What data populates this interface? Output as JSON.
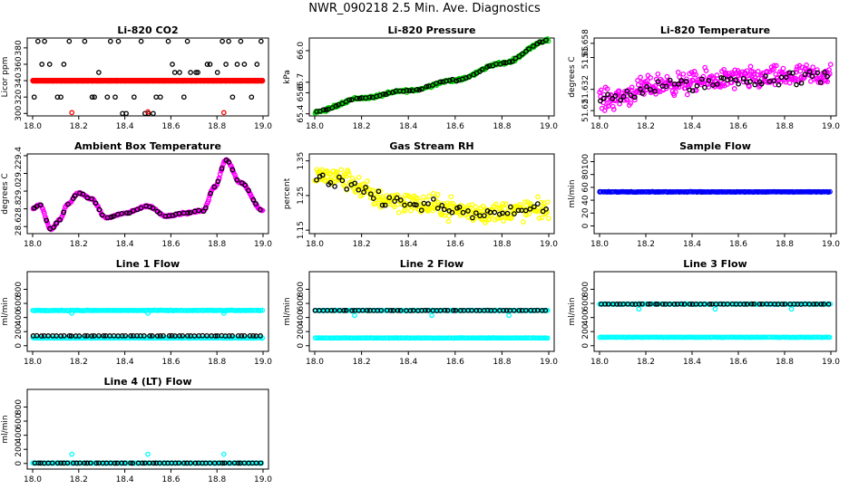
{
  "page": {
    "title": "NWR_090218  2.5 Min. Ave. Diagnostics"
  },
  "colors": {
    "black": "#000000",
    "red": "#ff0000",
    "green": "#00cc00",
    "magenta": "#ff00ff",
    "yellow": "#ffff00",
    "blue": "#0000ff",
    "cyan": "#00ffff"
  },
  "chart_data": [
    {
      "id": "co2",
      "type": "scatter",
      "title": "Li-820 CO2",
      "xlabel": "",
      "ylabel": "Licor ppm",
      "xlim": [
        18.0,
        19.0
      ],
      "ylim": [
        297,
        392
      ],
      "xticks": [
        "18.0",
        "18.2",
        "18.4",
        "18.6",
        "18.8",
        "19.0"
      ],
      "yticks": [
        {
          "v": 300,
          "label": "300"
        },
        {
          "v": 320,
          "label": "320"
        },
        {
          "v": 340,
          "label": "340"
        },
        {
          "v": 360,
          "label": "360"
        },
        {
          "v": 380,
          "label": "380"
        }
      ],
      "series": [
        {
          "name": "line reading",
          "color": "#000000",
          "pattern": "steps",
          "levels": [
            300,
            320,
            340,
            350,
            360,
            388
          ],
          "x0": 18.0,
          "x1": 19.0,
          "n": 60
        },
        {
          "name": "sample",
          "color": "#ff0000",
          "pattern": "flat",
          "y": 340,
          "x0": 18.0,
          "x1": 19.0,
          "n": 140,
          "dense": true
        },
        {
          "name": "standard spikes",
          "color": "#ff0000",
          "pattern": "points",
          "points": [
            [
              18.17,
              301
            ],
            [
              18.5,
              302
            ],
            [
              18.83,
              301
            ]
          ]
        }
      ]
    },
    {
      "id": "pressure",
      "type": "scatter",
      "title": "Li-820 Pressure",
      "xlabel": "",
      "ylabel": "kPa",
      "xlim": [
        18.0,
        19.0
      ],
      "ylim": [
        65.38,
        66.12
      ],
      "xticks": [
        "18.0",
        "18.2",
        "18.4",
        "18.6",
        "18.8",
        "19.0"
      ],
      "yticks": [
        {
          "v": 65.4,
          "label": "65.4"
        },
        {
          "v": 65.6,
          "label": "65.6"
        },
        {
          "v": 65.7,
          "label": "65.7"
        },
        {
          "v": 66.0,
          "label": "66.0"
        }
      ],
      "series": [
        {
          "name": "pressure",
          "color": "#00cc00",
          "pattern": "trend",
          "keys": [
            [
              18.0,
              65.42
            ],
            [
              18.2,
              65.55
            ],
            [
              18.4,
              65.62
            ],
            [
              18.6,
              65.72
            ],
            [
              18.8,
              65.88
            ],
            [
              19.0,
              66.1
            ]
          ],
          "noise": 0.02,
          "n": 260
        },
        {
          "name": "pressure avg",
          "color": "#000000",
          "pattern": "trend",
          "keys": [
            [
              18.0,
              65.42
            ],
            [
              18.2,
              65.55
            ],
            [
              18.4,
              65.62
            ],
            [
              18.6,
              65.72
            ],
            [
              18.8,
              65.88
            ],
            [
              19.0,
              66.1
            ]
          ],
          "noise": 0.012,
          "n": 70
        }
      ]
    },
    {
      "id": "licor_temp",
      "type": "scatter",
      "title": "Li-820 Temperature",
      "xlabel": "",
      "ylabel": "degrees C",
      "xlim": [
        18.0,
        19.0
      ],
      "ylim": [
        51.617,
        51.661
      ],
      "xticks": [
        "18.0",
        "18.2",
        "18.4",
        "18.6",
        "18.8",
        "19.0"
      ],
      "yticks": [
        {
          "v": 51.62,
          "label": "51.62"
        },
        {
          "v": 51.632,
          "label": "51.632"
        },
        {
          "v": 51.65,
          "label": "51.65"
        },
        {
          "v": 51.658,
          "label": "51.658"
        }
      ],
      "series": [
        {
          "name": "temperature",
          "color": "#ff00ff",
          "pattern": "trend",
          "keys": [
            [
              18.0,
              51.626
            ],
            [
              18.3,
              51.635
            ],
            [
              18.6,
              51.638
            ],
            [
              19.0,
              51.64
            ]
          ],
          "noise": 0.009,
          "n": 330
        },
        {
          "name": "temperature avg",
          "color": "#000000",
          "pattern": "trend",
          "keys": [
            [
              18.0,
              51.626
            ],
            [
              18.3,
              51.634
            ],
            [
              18.6,
              51.637
            ],
            [
              19.0,
              51.639
            ]
          ],
          "noise": 0.006,
          "n": 60
        }
      ]
    },
    {
      "id": "box_temp",
      "type": "scatter",
      "title": "Ambient Box Temperature",
      "xlabel": "",
      "ylabel": "degrees C",
      "xlim": [
        18.0,
        19.0
      ],
      "ylim": [
        28.52,
        29.42
      ],
      "xticks": [
        "18.0",
        "18.2",
        "18.4",
        "18.6",
        "18.8",
        "19.0"
      ],
      "yticks": [
        {
          "v": 28.6,
          "label": "28.6"
        },
        {
          "v": 28.8,
          "label": "28.8"
        },
        {
          "v": 29.0,
          "label": "29.0"
        },
        {
          "v": 29.2,
          "label": "29.2"
        },
        {
          "v": 29.4,
          "label": "29.4"
        }
      ],
      "series": [
        {
          "name": "box temp",
          "color": "#ff00ff",
          "pattern": "trend",
          "keys": [
            [
              18.0,
              28.8
            ],
            [
              18.03,
              28.85
            ],
            [
              18.08,
              28.57
            ],
            [
              18.12,
              28.68
            ],
            [
              18.15,
              28.85
            ],
            [
              18.2,
              28.98
            ],
            [
              18.25,
              28.92
            ],
            [
              18.32,
              28.7
            ],
            [
              18.4,
              28.75
            ],
            [
              18.5,
              28.83
            ],
            [
              18.58,
              28.72
            ],
            [
              18.66,
              28.75
            ],
            [
              18.74,
              28.78
            ],
            [
              18.79,
              29.05
            ],
            [
              18.84,
              29.35
            ],
            [
              18.9,
              29.1
            ],
            [
              19.0,
              28.78
            ]
          ],
          "noise": 0.015,
          "n": 300
        },
        {
          "name": "box temp avg",
          "color": "#000000",
          "pattern": "trend",
          "keys": [
            [
              18.0,
              28.8
            ],
            [
              18.03,
              28.85
            ],
            [
              18.08,
              28.57
            ],
            [
              18.12,
              28.68
            ],
            [
              18.15,
              28.85
            ],
            [
              18.2,
              28.98
            ],
            [
              18.25,
              28.92
            ],
            [
              18.32,
              28.7
            ],
            [
              18.4,
              28.75
            ],
            [
              18.5,
              28.83
            ],
            [
              18.58,
              28.72
            ],
            [
              18.66,
              28.75
            ],
            [
              18.74,
              28.78
            ],
            [
              18.79,
              29.05
            ],
            [
              18.84,
              29.35
            ],
            [
              18.9,
              29.1
            ],
            [
              19.0,
              28.78
            ]
          ],
          "noise": 0.01,
          "n": 60
        }
      ]
    },
    {
      "id": "rh",
      "type": "scatter",
      "title": "Gas Stream RH",
      "xlabel": "",
      "ylabel": "percent",
      "xlim": [
        18.0,
        19.0
      ],
      "ylim": [
        1.14,
        1.37
      ],
      "xticks": [
        "18.0",
        "18.2",
        "18.4",
        "18.6",
        "18.8",
        "19.0"
      ],
      "yticks": [
        {
          "v": 1.15,
          "label": "1.15"
        },
        {
          "v": 1.25,
          "label": "1.25"
        },
        {
          "v": 1.35,
          "label": "1.35"
        }
      ],
      "series": [
        {
          "name": "rh",
          "color": "#ffff00",
          "pattern": "trend",
          "keys": [
            [
              18.0,
              1.31
            ],
            [
              18.1,
              1.3
            ],
            [
              18.3,
              1.24
            ],
            [
              18.5,
              1.22
            ],
            [
              18.7,
              1.2
            ],
            [
              19.0,
              1.21
            ]
          ],
          "noise": 0.045,
          "n": 330
        },
        {
          "name": "rh avg",
          "color": "#000000",
          "pattern": "trend",
          "keys": [
            [
              18.0,
              1.3
            ],
            [
              18.1,
              1.29
            ],
            [
              18.3,
              1.24
            ],
            [
              18.5,
              1.22
            ],
            [
              18.7,
              1.2
            ],
            [
              19.0,
              1.21
            ]
          ],
          "noise": 0.025,
          "n": 60
        }
      ]
    },
    {
      "id": "sample_flow",
      "type": "scatter",
      "title": "Sample Flow",
      "xlabel": "",
      "ylabel": "ml/min",
      "xlim": [
        18.0,
        19.0
      ],
      "ylim": [
        -12,
        112
      ],
      "xticks": [
        "18.0",
        "18.2",
        "18.4",
        "18.6",
        "18.8",
        "19.0"
      ],
      "yticks": [
        {
          "v": 0,
          "label": "0"
        },
        {
          "v": 20,
          "label": "20"
        },
        {
          "v": 40,
          "label": "40"
        },
        {
          "v": 60,
          "label": "60"
        },
        {
          "v": 80,
          "label": "80"
        },
        {
          "v": 100,
          "label": "100"
        }
      ],
      "series": [
        {
          "name": "flow avg",
          "color": "#000000",
          "pattern": "flat",
          "y": 53,
          "x0": 18.0,
          "x1": 19.0,
          "n": 80,
          "noise": 0.6
        },
        {
          "name": "flow",
          "color": "#0000ff",
          "pattern": "flat",
          "y": 53,
          "x0": 18.0,
          "x1": 19.0,
          "n": 160,
          "noise": 0.6
        }
      ]
    },
    {
      "id": "line1",
      "type": "scatter",
      "title": "Line 1 Flow",
      "xlabel": "",
      "ylabel": "ml/min",
      "xlim": [
        18.0,
        19.0
      ],
      "ylim": [
        -80,
        1050
      ],
      "xticks": [
        "18.0",
        "18.2",
        "18.4",
        "18.6",
        "18.8",
        "19.0"
      ],
      "yticks": [
        {
          "v": 0,
          "label": "0"
        },
        {
          "v": 200,
          "label": "200"
        },
        {
          "v": 400,
          "label": "400"
        },
        {
          "v": 600,
          "label": "600"
        },
        {
          "v": 800,
          "label": "800"
        }
      ],
      "series": [
        {
          "name": "line flow",
          "color": "#00ffff",
          "pattern": "flat",
          "y": 500,
          "x0": 18.0,
          "x1": 19.0,
          "n": 160,
          "noise": 6
        },
        {
          "name": "line flow low",
          "color": "#00ffff",
          "pattern": "flat",
          "y": 110,
          "x0": 18.0,
          "x1": 19.0,
          "n": 160,
          "noise": 4
        },
        {
          "name": "line flow dips",
          "color": "#00ffff",
          "pattern": "points",
          "points": [
            [
              18.17,
              460
            ],
            [
              18.5,
              460
            ],
            [
              18.83,
              460
            ]
          ]
        },
        {
          "name": "line flow avg",
          "color": "#000000",
          "pattern": "flat",
          "y": 140,
          "x0": 18.0,
          "x1": 19.0,
          "n": 60,
          "noise": 3
        }
      ]
    },
    {
      "id": "line2",
      "type": "scatter",
      "title": "Line 2 Flow",
      "xlabel": "",
      "ylabel": "ml/min",
      "xlim": [
        18.0,
        19.0
      ],
      "ylim": [
        -80,
        1050
      ],
      "xticks": [
        "18.0",
        "18.2",
        "18.4",
        "18.6",
        "18.8",
        "19.0"
      ],
      "yticks": [
        {
          "v": 0,
          "label": "0"
        },
        {
          "v": 200,
          "label": "200"
        },
        {
          "v": 400,
          "label": "400"
        },
        {
          "v": 600,
          "label": "600"
        },
        {
          "v": 800,
          "label": "800"
        }
      ],
      "series": [
        {
          "name": "line flow",
          "color": "#00ffff",
          "pattern": "flat",
          "y": 500,
          "x0": 18.0,
          "x1": 19.0,
          "n": 160,
          "noise": 6
        },
        {
          "name": "line flow low",
          "color": "#00ffff",
          "pattern": "flat",
          "y": 110,
          "x0": 18.0,
          "x1": 19.0,
          "n": 160,
          "noise": 4
        },
        {
          "name": "line flow dips",
          "color": "#00ffff",
          "pattern": "points",
          "points": [
            [
              18.17,
              430
            ],
            [
              18.5,
              430
            ],
            [
              18.83,
              430
            ]
          ]
        },
        {
          "name": "line flow avg",
          "color": "#000000",
          "pattern": "flat",
          "y": 500,
          "x0": 18.0,
          "x1": 19.0,
          "n": 60,
          "noise": 3
        }
      ]
    },
    {
      "id": "line3",
      "type": "scatter",
      "title": "Line 3 Flow",
      "xlabel": "",
      "ylabel": "ml/min",
      "xlim": [
        18.0,
        19.0
      ],
      "ylim": [
        -80,
        1050
      ],
      "xticks": [
        "18.0",
        "18.2",
        "18.4",
        "18.6",
        "18.8",
        "19.0"
      ],
      "yticks": [
        {
          "v": 0,
          "label": "0"
        },
        {
          "v": 200,
          "label": "200"
        },
        {
          "v": 400,
          "label": "400"
        },
        {
          "v": 600,
          "label": "600"
        },
        {
          "v": 800,
          "label": "800"
        }
      ],
      "series": [
        {
          "name": "line flow",
          "color": "#00ffff",
          "pattern": "flat",
          "y": 590,
          "x0": 18.0,
          "x1": 19.0,
          "n": 160,
          "noise": 6
        },
        {
          "name": "line flow low",
          "color": "#00ffff",
          "pattern": "flat",
          "y": 120,
          "x0": 18.0,
          "x1": 19.0,
          "n": 160,
          "noise": 4
        },
        {
          "name": "line flow dips",
          "color": "#00ffff",
          "pattern": "points",
          "points": [
            [
              18.17,
              520
            ],
            [
              18.5,
              520
            ],
            [
              18.83,
              520
            ]
          ]
        },
        {
          "name": "line flow avg",
          "color": "#000000",
          "pattern": "flat",
          "y": 590,
          "x0": 18.0,
          "x1": 19.0,
          "n": 60,
          "noise": 3
        }
      ]
    },
    {
      "id": "line4",
      "type": "scatter",
      "title": "Line 4 (LT) Flow",
      "xlabel": "",
      "ylabel": "ml/min",
      "xlim": [
        18.0,
        19.0
      ],
      "ylim": [
        -80,
        1050
      ],
      "xticks": [
        "18.0",
        "18.2",
        "18.4",
        "18.6",
        "18.8",
        "19.0"
      ],
      "yticks": [
        {
          "v": 0,
          "label": "0"
        },
        {
          "v": 200,
          "label": "200"
        },
        {
          "v": 400,
          "label": "400"
        },
        {
          "v": 600,
          "label": "600"
        },
        {
          "v": 800,
          "label": "800"
        }
      ],
      "series": [
        {
          "name": "line flow",
          "color": "#00ffff",
          "pattern": "flat",
          "y": 5,
          "x0": 18.0,
          "x1": 19.0,
          "n": 160,
          "noise": 3
        },
        {
          "name": "line flow spikes",
          "color": "#00ffff",
          "pattern": "points",
          "points": [
            [
              18.17,
              130
            ],
            [
              18.5,
              130
            ],
            [
              18.83,
              130
            ]
          ]
        },
        {
          "name": "line flow avg",
          "color": "#000000",
          "pattern": "flat",
          "y": 5,
          "x0": 18.0,
          "x1": 19.0,
          "n": 60,
          "noise": 2
        }
      ]
    }
  ]
}
